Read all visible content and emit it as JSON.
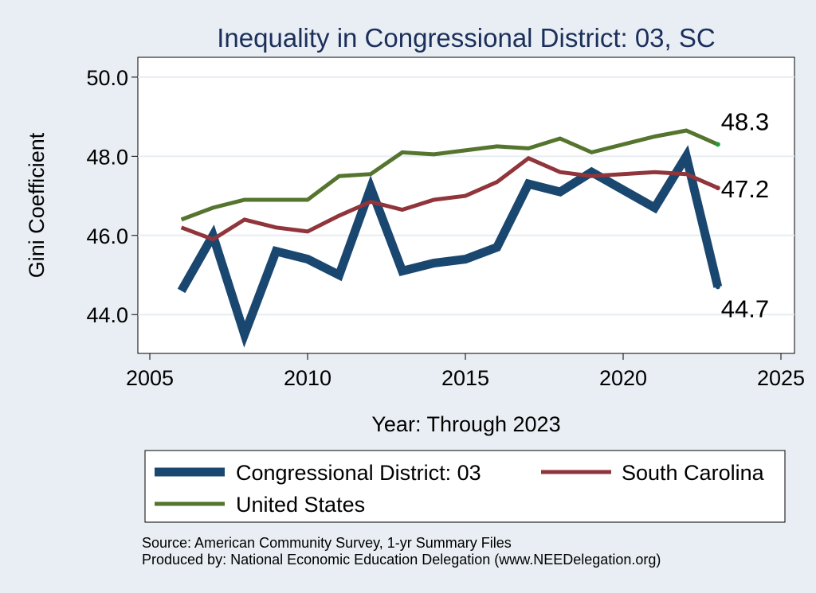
{
  "chart_data": {
    "type": "line",
    "title": "Inequality in Congressional District:  03, SC",
    "xlabel": "Year: Through 2023",
    "ylabel": "Gini Coefficient",
    "xlim": [
      2005,
      2025
    ],
    "ylim": [
      43.3,
      50.3
    ],
    "xticks": [
      "2005",
      "2010",
      "2015",
      "2020",
      "2025"
    ],
    "yticks": [
      "44.0",
      "46.0",
      "48.0",
      "50.0"
    ],
    "grid": true,
    "legend_position": "bottom",
    "series": [
      {
        "name": "Congressional District:  03",
        "color": "#1a476f",
        "x": [
          2006,
          2007,
          2008,
          2009,
          2010,
          2011,
          2012,
          2013,
          2014,
          2015,
          2016,
          2017,
          2018,
          2019,
          2021,
          2022,
          2023
        ],
        "y": [
          44.6,
          46.0,
          43.5,
          45.6,
          45.4,
          45.0,
          47.2,
          45.1,
          45.3,
          45.4,
          45.7,
          47.3,
          47.1,
          47.6,
          46.7,
          48.0,
          44.7
        ],
        "end_label": "44.7"
      },
      {
        "name": "South Carolina",
        "color": "#90353b",
        "x": [
          2006,
          2007,
          2008,
          2009,
          2010,
          2011,
          2012,
          2013,
          2014,
          2015,
          2016,
          2017,
          2018,
          2019,
          2021,
          2022,
          2023
        ],
        "y": [
          46.2,
          45.9,
          46.4,
          46.2,
          46.1,
          46.5,
          46.85,
          46.65,
          46.9,
          47.0,
          47.35,
          47.95,
          47.6,
          47.5,
          47.6,
          47.55,
          47.2
        ],
        "end_label": "47.2"
      },
      {
        "name": "United States",
        "color": "#55752f",
        "x": [
          2006,
          2007,
          2008,
          2009,
          2010,
          2011,
          2012,
          2013,
          2014,
          2015,
          2016,
          2017,
          2018,
          2019,
          2021,
          2022,
          2023
        ],
        "y": [
          46.4,
          46.7,
          46.9,
          46.9,
          46.9,
          47.5,
          47.55,
          48.1,
          48.05,
          48.15,
          48.25,
          48.2,
          48.45,
          48.1,
          48.5,
          48.65,
          48.3
        ],
        "end_label": "48.3"
      }
    ]
  },
  "source_lines": [
    "Source: American Community Survey, 1-yr Summary Files",
    "Produced by: National Economic Education Delegation (www.NEEDelegation.org)"
  ]
}
